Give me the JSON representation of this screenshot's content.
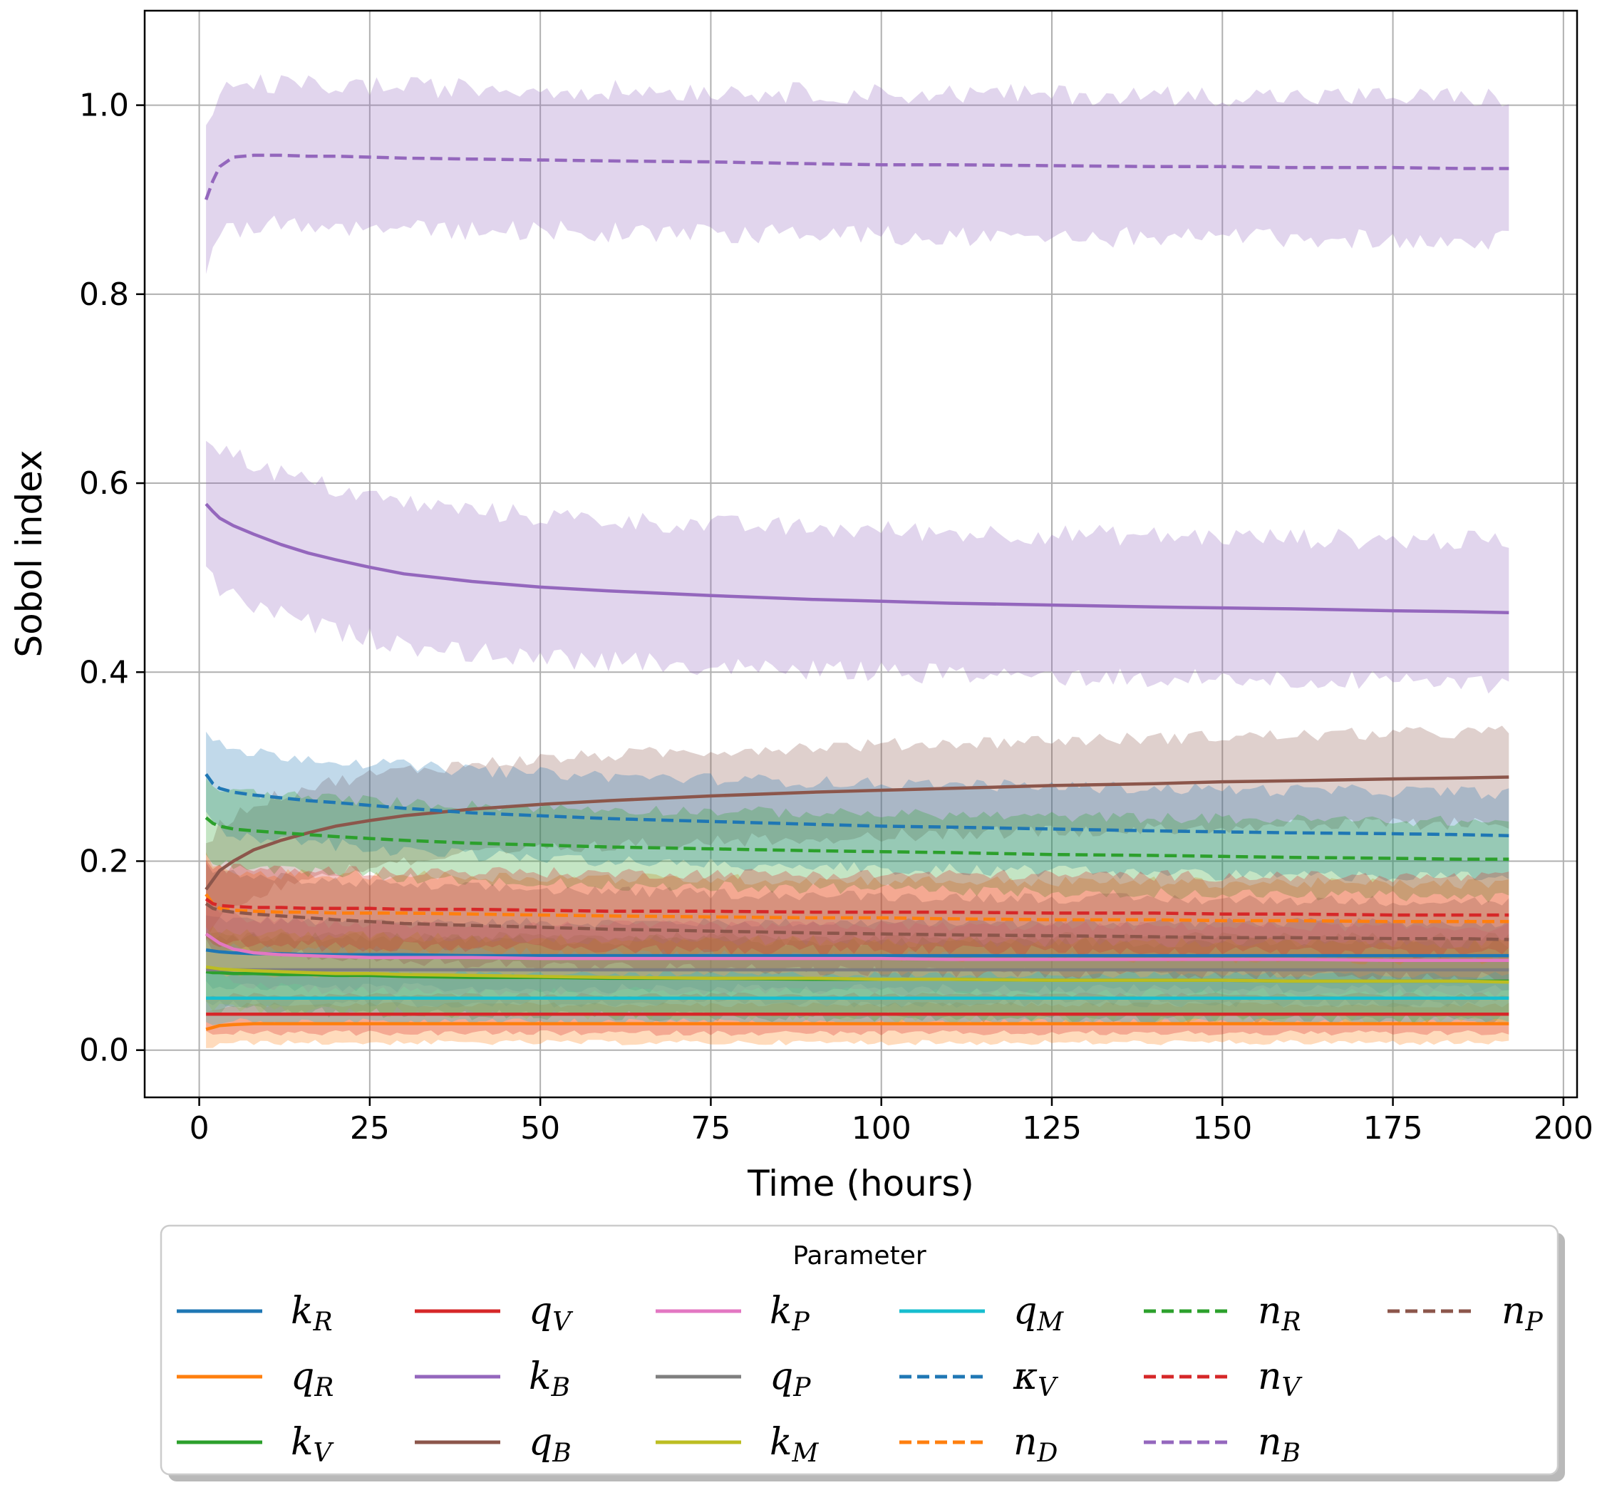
{
  "chart_data": {
    "type": "line",
    "xlabel": "Time (hours)",
    "ylabel": "Sobol index",
    "xlim": [
      -8,
      202
    ],
    "ylim": [
      -0.05,
      1.1
    ],
    "xticks": [
      0,
      25,
      50,
      75,
      100,
      125,
      150,
      175,
      200
    ],
    "yticks": [
      0.0,
      0.2,
      0.4,
      0.6,
      0.8,
      1.0
    ],
    "xtick_labels": [
      "0",
      "25",
      "50",
      "75",
      "100",
      "125",
      "150",
      "175",
      "200"
    ],
    "ytick_labels": [
      "0.0",
      "0.2",
      "0.4",
      "0.6",
      "0.8",
      "1.0"
    ],
    "grid": true,
    "legend": {
      "title": "Parameter",
      "placement": "bottom",
      "columns": 6
    },
    "x": [
      1,
      2,
      3,
      5,
      8,
      12,
      16,
      20,
      25,
      30,
      40,
      50,
      60,
      75,
      90,
      100,
      110,
      125,
      140,
      150,
      160,
      175,
      185,
      192
    ],
    "band_halfwidth_note": "",
    "series": [
      {
        "name": "k",
        "sub": "R",
        "color": "#1f77b4",
        "dash": "solid",
        "values": [
          0.106,
          0.105,
          0.104,
          0.103,
          0.102,
          0.102,
          0.101,
          0.101,
          0.101,
          0.101,
          0.1,
          0.1,
          0.1,
          0.1,
          0.1,
          0.1,
          0.1,
          0.1,
          0.1,
          0.1,
          0.1,
          0.1,
          0.1,
          0.1
        ],
        "band": 0.035
      },
      {
        "name": "q",
        "sub": "R",
        "color": "#ff7f0e",
        "dash": "solid",
        "values": [
          0.022,
          0.024,
          0.026,
          0.027,
          0.028,
          0.028,
          0.028,
          0.028,
          0.028,
          0.028,
          0.028,
          0.028,
          0.028,
          0.028,
          0.028,
          0.028,
          0.028,
          0.028,
          0.028,
          0.028,
          0.028,
          0.028,
          0.028,
          0.028
        ],
        "band": 0.02
      },
      {
        "name": "k",
        "sub": "V",
        "color": "#2ca02c",
        "dash": "solid",
        "values": [
          0.083,
          0.082,
          0.082,
          0.081,
          0.081,
          0.08,
          0.08,
          0.079,
          0.079,
          0.078,
          0.077,
          0.077,
          0.076,
          0.076,
          0.075,
          0.075,
          0.075,
          0.074,
          0.074,
          0.074,
          0.073,
          0.073,
          0.073,
          0.073
        ],
        "band": 0.04
      },
      {
        "name": "q",
        "sub": "V",
        "color": "#d62728",
        "dash": "solid",
        "values": [
          0.038,
          0.038,
          0.038,
          0.038,
          0.038,
          0.038,
          0.038,
          0.038,
          0.038,
          0.038,
          0.038,
          0.038,
          0.038,
          0.038,
          0.038,
          0.038,
          0.038,
          0.038,
          0.038,
          0.038,
          0.038,
          0.038,
          0.038,
          0.038
        ],
        "band": 0.02
      },
      {
        "name": "k",
        "sub": "B",
        "color": "#9467bd",
        "dash": "solid",
        "values": [
          0.578,
          0.57,
          0.563,
          0.555,
          0.546,
          0.535,
          0.526,
          0.519,
          0.511,
          0.504,
          0.496,
          0.49,
          0.486,
          0.481,
          0.477,
          0.475,
          0.473,
          0.471,
          0.469,
          0.468,
          0.467,
          0.465,
          0.464,
          0.463
        ],
        "band": 0.075
      },
      {
        "name": "q",
        "sub": "B",
        "color": "#8c564b",
        "dash": "solid",
        "values": [
          0.17,
          0.18,
          0.19,
          0.2,
          0.212,
          0.222,
          0.23,
          0.237,
          0.243,
          0.248,
          0.255,
          0.26,
          0.264,
          0.269,
          0.273,
          0.275,
          0.277,
          0.28,
          0.282,
          0.284,
          0.285,
          0.287,
          0.288,
          0.289
        ],
        "band": 0.048
      },
      {
        "name": "k",
        "sub": "P",
        "color": "#e377c2",
        "dash": "solid",
        "values": [
          0.123,
          0.118,
          0.113,
          0.107,
          0.103,
          0.101,
          0.1,
          0.099,
          0.098,
          0.098,
          0.098,
          0.097,
          0.097,
          0.097,
          0.097,
          0.097,
          0.096,
          0.096,
          0.096,
          0.096,
          0.096,
          0.095,
          0.095,
          0.095
        ],
        "band": 0.035
      },
      {
        "name": "q",
        "sub": "P",
        "color": "#7f7f7f",
        "dash": "solid",
        "values": [
          0.085,
          0.085,
          0.085,
          0.085,
          0.085,
          0.085,
          0.085,
          0.085,
          0.085,
          0.085,
          0.085,
          0.085,
          0.085,
          0.085,
          0.085,
          0.085,
          0.085,
          0.085,
          0.085,
          0.085,
          0.085,
          0.085,
          0.085,
          0.085
        ],
        "band": 0.035
      },
      {
        "name": "k",
        "sub": "M",
        "color": "#bcbd22",
        "dash": "solid",
        "values": [
          0.088,
          0.087,
          0.086,
          0.085,
          0.084,
          0.083,
          0.082,
          0.081,
          0.081,
          0.08,
          0.079,
          0.078,
          0.077,
          0.076,
          0.076,
          0.075,
          0.075,
          0.074,
          0.074,
          0.074,
          0.073,
          0.073,
          0.073,
          0.072
        ],
        "band": 0.04
      },
      {
        "name": "q",
        "sub": "M",
        "color": "#17becf",
        "dash": "solid",
        "values": [
          0.055,
          0.055,
          0.055,
          0.055,
          0.055,
          0.055,
          0.055,
          0.055,
          0.055,
          0.055,
          0.055,
          0.055,
          0.055,
          0.055,
          0.055,
          0.055,
          0.055,
          0.055,
          0.055,
          0.055,
          0.055,
          0.055,
          0.055,
          0.055
        ],
        "band": 0.025
      },
      {
        "name": "κ",
        "sub": "V",
        "color": "#1f77b4",
        "dash": "dashed",
        "values": [
          0.292,
          0.282,
          0.277,
          0.273,
          0.27,
          0.267,
          0.264,
          0.262,
          0.259,
          0.256,
          0.251,
          0.248,
          0.245,
          0.242,
          0.239,
          0.237,
          0.236,
          0.234,
          0.232,
          0.231,
          0.23,
          0.229,
          0.228,
          0.227
        ],
        "band": 0.045
      },
      {
        "name": "n",
        "sub": "D",
        "color": "#ff7f0e",
        "dash": "dashed",
        "values": [
          0.165,
          0.155,
          0.15,
          0.148,
          0.147,
          0.146,
          0.146,
          0.145,
          0.145,
          0.145,
          0.144,
          0.143,
          0.142,
          0.141,
          0.14,
          0.14,
          0.139,
          0.138,
          0.138,
          0.137,
          0.137,
          0.136,
          0.136,
          0.136
        ],
        "band": 0.04
      },
      {
        "name": "n",
        "sub": "R",
        "color": "#2ca02c",
        "dash": "dashed",
        "values": [
          0.246,
          0.24,
          0.237,
          0.234,
          0.232,
          0.23,
          0.228,
          0.226,
          0.224,
          0.222,
          0.219,
          0.217,
          0.215,
          0.213,
          0.211,
          0.21,
          0.209,
          0.207,
          0.206,
          0.205,
          0.204,
          0.203,
          0.202,
          0.202
        ],
        "band": 0.04
      },
      {
        "name": "n",
        "sub": "V",
        "color": "#d62728",
        "dash": "dashed",
        "values": [
          0.16,
          0.155,
          0.153,
          0.152,
          0.151,
          0.151,
          0.15,
          0.15,
          0.15,
          0.149,
          0.149,
          0.148,
          0.147,
          0.147,
          0.146,
          0.146,
          0.146,
          0.145,
          0.145,
          0.144,
          0.144,
          0.143,
          0.143,
          0.143
        ],
        "band": 0.04
      },
      {
        "name": "n",
        "sub": "B",
        "color": "#9467bd",
        "dash": "dashed",
        "values": [
          0.9,
          0.92,
          0.935,
          0.945,
          0.947,
          0.947,
          0.946,
          0.946,
          0.945,
          0.944,
          0.943,
          0.942,
          0.941,
          0.94,
          0.938,
          0.937,
          0.937,
          0.936,
          0.935,
          0.935,
          0.934,
          0.934,
          0.933,
          0.933
        ],
        "band": 0.075
      },
      {
        "name": "n",
        "sub": "P",
        "color": "#8c564b",
        "dash": "dashed",
        "values": [
          0.155,
          0.15,
          0.148,
          0.146,
          0.144,
          0.142,
          0.14,
          0.138,
          0.136,
          0.134,
          0.132,
          0.13,
          0.128,
          0.126,
          0.124,
          0.123,
          0.122,
          0.121,
          0.12,
          0.119,
          0.119,
          0.118,
          0.118,
          0.117
        ],
        "band": 0.04
      }
    ]
  }
}
